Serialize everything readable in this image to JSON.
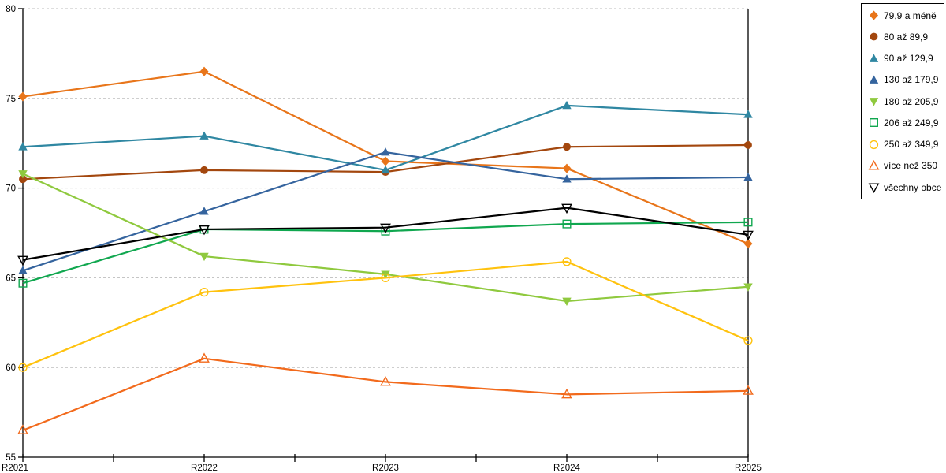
{
  "chart_data": {
    "type": "line",
    "categories": [
      "R2021",
      "R2022",
      "R2023",
      "R2024",
      "R2025"
    ],
    "series": [
      {
        "name": "79,9 a méně",
        "marker": "diamond",
        "fill": "filled",
        "color": "#E8751A",
        "values": [
          75.1,
          76.5,
          71.5,
          71.1,
          66.9
        ]
      },
      {
        "name": "80 až 89,9",
        "marker": "circle",
        "fill": "filled",
        "color": "#A3470E",
        "values": [
          70.5,
          71.0,
          70.9,
          72.3,
          72.4
        ]
      },
      {
        "name": "90 až 129,9",
        "marker": "triangle-up",
        "fill": "filled",
        "color": "#2F87A2",
        "values": [
          72.3,
          72.9,
          71.0,
          74.6,
          74.1
        ]
      },
      {
        "name": "130 až 179,9",
        "marker": "triangle-up",
        "fill": "filled",
        "color": "#35649E",
        "values": [
          65.4,
          68.7,
          72.0,
          70.5,
          70.6
        ]
      },
      {
        "name": "180 až 205,9",
        "marker": "triangle-down",
        "fill": "filled",
        "color": "#8FC93E",
        "values": [
          70.8,
          66.2,
          65.2,
          63.7,
          64.5
        ]
      },
      {
        "name": "206 až 249,9",
        "marker": "square",
        "fill": "open",
        "color": "#10A74F",
        "values": [
          64.7,
          67.7,
          67.6,
          68.0,
          68.1
        ]
      },
      {
        "name": "250 až 349,9",
        "marker": "circle",
        "fill": "open",
        "color": "#FFC20E",
        "values": [
          60.0,
          64.2,
          65.0,
          65.9,
          61.5
        ]
      },
      {
        "name": "více než 350",
        "marker": "triangle-up",
        "fill": "open",
        "color": "#F26A1C",
        "values": [
          56.5,
          60.5,
          59.2,
          58.5,
          58.7
        ]
      },
      {
        "name": "všechny obce",
        "marker": "triangle-down",
        "fill": "open",
        "color": "#000000",
        "values": [
          66.0,
          67.7,
          67.8,
          68.9,
          67.4
        ]
      }
    ],
    "title": "",
    "xlabel": "",
    "ylabel": "",
    "ylim": [
      55,
      80
    ],
    "yticks": [
      55,
      60,
      65,
      70,
      75,
      80
    ],
    "grid": "horizontal-dashed",
    "gridline_color": "#BDBDBD",
    "axis_color": "#000000",
    "legend_position": "top-right"
  }
}
